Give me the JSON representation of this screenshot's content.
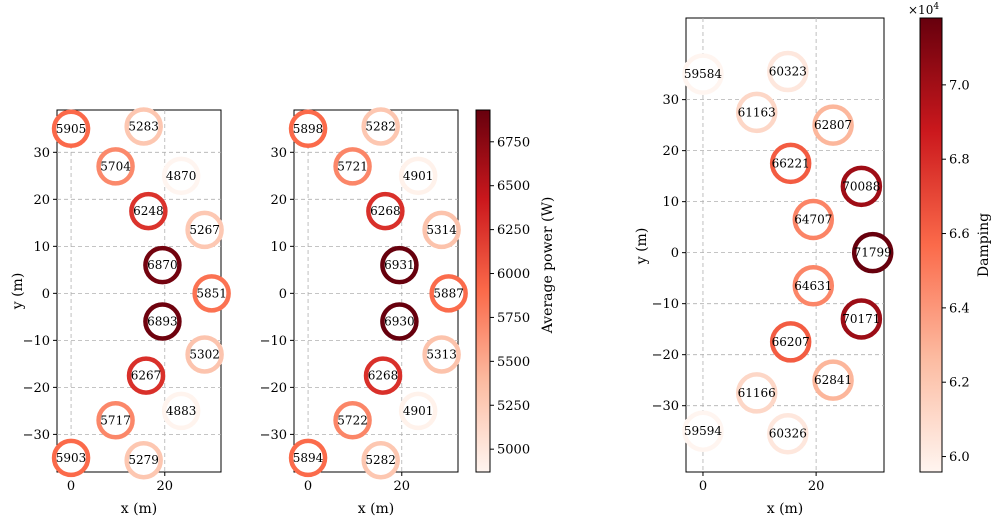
{
  "colors": {
    "ramp": [
      "#fff5f0",
      "#fcbba1",
      "#fb6a4a",
      "#cb181d",
      "#67000d"
    ]
  },
  "chart_data": [
    {
      "type": "scatter",
      "xlabel": "x (m)",
      "ylabel": "y (m)",
      "xlim": [
        -3,
        32
      ],
      "ylim": [
        -38,
        39
      ],
      "xticks": [
        "0",
        "20"
      ],
      "yticks": [
        "−30",
        "−20",
        "−10",
        "0",
        "10",
        "20",
        "30"
      ],
      "grid": true,
      "points": [
        {
          "x": 0,
          "y": 35,
          "value": 5905
        },
        {
          "x": 15.5,
          "y": 35.5,
          "value": 5283
        },
        {
          "x": 9.5,
          "y": 27,
          "value": 5704
        },
        {
          "x": 23.5,
          "y": 25,
          "value": 4870
        },
        {
          "x": 16.5,
          "y": 17.5,
          "value": 6248
        },
        {
          "x": 28.5,
          "y": 13.5,
          "value": 5267
        },
        {
          "x": 19.5,
          "y": 6,
          "value": 6870
        },
        {
          "x": 30,
          "y": 0,
          "value": 5851
        },
        {
          "x": 19.5,
          "y": -6,
          "value": 6893
        },
        {
          "x": 28.5,
          "y": -13,
          "value": 5302
        },
        {
          "x": 16,
          "y": -17.5,
          "value": 6267
        },
        {
          "x": 23.5,
          "y": -25,
          "value": 4883
        },
        {
          "x": 9.5,
          "y": -27,
          "value": 5717
        },
        {
          "x": 0,
          "y": -35,
          "value": 5903
        },
        {
          "x": 15.5,
          "y": -35.5,
          "value": 5279
        }
      ]
    },
    {
      "type": "scatter",
      "xlabel": "x (m)",
      "xlim": [
        -3,
        32
      ],
      "ylim": [
        -38,
        39
      ],
      "xticks": [
        "0",
        "20"
      ],
      "yticks": [
        "−30",
        "−20",
        "−10",
        "0",
        "10",
        "20",
        "30"
      ],
      "grid": true,
      "colorbar": {
        "label": "Average power (W)",
        "range": [
          4870,
          6931
        ],
        "ticks": [
          "5000",
          "5250",
          "5500",
          "5750",
          "6000",
          "6250",
          "6500",
          "6750"
        ]
      },
      "points": [
        {
          "x": 0,
          "y": 35,
          "value": 5898
        },
        {
          "x": 15.5,
          "y": 35.5,
          "value": 5282
        },
        {
          "x": 9.5,
          "y": 27,
          "value": 5721
        },
        {
          "x": 23.5,
          "y": 25,
          "value": 4901
        },
        {
          "x": 16.5,
          "y": 17.5,
          "value": 6268
        },
        {
          "x": 28.5,
          "y": 13.5,
          "value": 5314
        },
        {
          "x": 19.5,
          "y": 6,
          "value": 6931
        },
        {
          "x": 30,
          "y": 0,
          "value": 5887
        },
        {
          "x": 19.5,
          "y": -6,
          "value": 6930
        },
        {
          "x": 28.5,
          "y": -13,
          "value": 5313
        },
        {
          "x": 16,
          "y": -17.5,
          "value": 6268
        },
        {
          "x": 23.5,
          "y": -25,
          "value": 4901
        },
        {
          "x": 9.5,
          "y": -27,
          "value": 5722
        },
        {
          "x": 0,
          "y": -35,
          "value": 5894
        },
        {
          "x": 15.5,
          "y": -35.5,
          "value": 5282
        }
      ]
    },
    {
      "type": "scatter",
      "xlabel": "x (m)",
      "ylabel": "y (m)",
      "xlim": [
        -3,
        32
      ],
      "ylim": [
        -43,
        46
      ],
      "xticks": [
        "0",
        "20"
      ],
      "yticks": [
        "−30",
        "−20",
        "−10",
        "0",
        "10",
        "20",
        "30"
      ],
      "grid": true,
      "colorbar": {
        "label": "Damping",
        "range": [
          59584,
          71799
        ],
        "ticks": [
          "6.0",
          "6.2",
          "6.4",
          "6.6",
          "6.8",
          "7.0"
        ],
        "multiplier": "×10",
        "multiplier_exp": "4"
      },
      "points": [
        {
          "x": 0,
          "y": 35,
          "value": 59584
        },
        {
          "x": 15,
          "y": 35.5,
          "value": 60323
        },
        {
          "x": 9.5,
          "y": 27.5,
          "value": 61163
        },
        {
          "x": 23,
          "y": 25,
          "value": 62807
        },
        {
          "x": 15.5,
          "y": 17.5,
          "value": 66221
        },
        {
          "x": 28,
          "y": 13,
          "value": 70088
        },
        {
          "x": 19.5,
          "y": 6.5,
          "value": 64707
        },
        {
          "x": 30,
          "y": 0,
          "value": 71799
        },
        {
          "x": 19.5,
          "y": -6.5,
          "value": 64631
        },
        {
          "x": 28,
          "y": -13,
          "value": 70171
        },
        {
          "x": 15.5,
          "y": -17.5,
          "value": 66207
        },
        {
          "x": 23,
          "y": -25,
          "value": 62841
        },
        {
          "x": 9.5,
          "y": -27.5,
          "value": 61166
        },
        {
          "x": 0,
          "y": -35,
          "value": 59594
        },
        {
          "x": 15,
          "y": -35.5,
          "value": 60326
        }
      ]
    }
  ]
}
